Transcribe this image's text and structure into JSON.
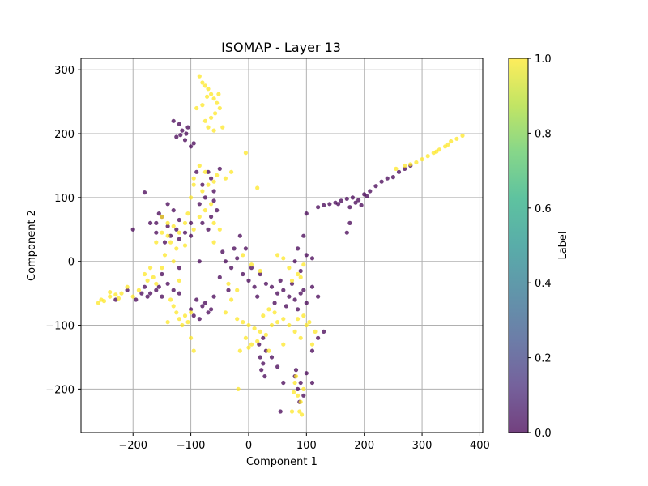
{
  "chart_data": {
    "type": "scatter",
    "title": "ISOMAP - Layer 13",
    "xlabel": "Component 1",
    "ylabel": "Component 2",
    "xlim": [
      -290,
      405
    ],
    "ylim": [
      -268,
      318
    ],
    "xticks": [
      -200,
      -100,
      0,
      100,
      200,
      300,
      400
    ],
    "yticks": [
      -200,
      -100,
      0,
      100,
      200,
      300
    ],
    "xtick_labels": [
      "−200",
      "−100",
      "0",
      "100",
      "200",
      "300",
      "400"
    ],
    "ytick_labels": [
      "−200",
      "−100",
      "0",
      "100",
      "200",
      "300"
    ],
    "grid": true,
    "colormap": "viridis",
    "colors": {
      "label_0": "#440154",
      "label_1": "#fde725"
    },
    "colorbar": {
      "label": "Label",
      "range": [
        0.0,
        1.0
      ],
      "ticks": [
        0.0,
        0.2,
        0.4,
        0.6,
        0.8,
        1.0
      ],
      "tick_labels": [
        "0.0",
        "0.2",
        "0.4",
        "0.6",
        "0.8",
        "1.0"
      ]
    },
    "series": [
      {
        "name": "0",
        "points": [
          [
            -120,
            215
          ],
          [
            -115,
            205
          ],
          [
            -108,
            200
          ],
          [
            -125,
            195
          ],
          [
            -110,
            190
          ],
          [
            -95,
            185
          ],
          [
            -130,
            220
          ],
          [
            -118,
            198
          ],
          [
            -105,
            210
          ],
          [
            -100,
            180
          ],
          [
            -70,
            140
          ],
          [
            -65,
            130
          ],
          [
            -80,
            120
          ],
          [
            -60,
            110
          ],
          [
            -75,
            100
          ],
          [
            -85,
            90
          ],
          [
            -55,
            80
          ],
          [
            -65,
            70
          ],
          [
            -80,
            60
          ],
          [
            -70,
            50
          ],
          [
            -90,
            140
          ],
          [
            -50,
            145
          ],
          [
            -60,
            95
          ],
          [
            -140,
            90
          ],
          [
            -130,
            80
          ],
          [
            -150,
            70
          ],
          [
            -160,
            60
          ],
          [
            -140,
            55
          ],
          [
            -125,
            50
          ],
          [
            -110,
            45
          ],
          [
            -135,
            40
          ],
          [
            -120,
            35
          ],
          [
            -145,
            30
          ],
          [
            -155,
            75
          ],
          [
            -120,
            65
          ],
          [
            -100,
            60
          ],
          [
            -170,
            60
          ],
          [
            -100,
            40
          ],
          [
            -180,
            -40
          ],
          [
            -170,
            -50
          ],
          [
            -160,
            -45
          ],
          [
            -150,
            -55
          ],
          [
            -140,
            -35
          ],
          [
            -130,
            -45
          ],
          [
            -120,
            -50
          ],
          [
            -175,
            -55
          ],
          [
            -155,
            -40
          ],
          [
            -185,
            -50
          ],
          [
            -90,
            -60
          ],
          [
            -80,
            -70
          ],
          [
            -70,
            -80
          ],
          [
            -95,
            -85
          ],
          [
            -85,
            -90
          ],
          [
            -75,
            -65
          ],
          [
            -65,
            -75
          ],
          [
            -100,
            -75
          ],
          [
            -60,
            -55
          ],
          [
            140,
            90
          ],
          [
            150,
            92
          ],
          [
            160,
            95
          ],
          [
            170,
            98
          ],
          [
            180,
            100
          ],
          [
            190,
            96
          ],
          [
            200,
            105
          ],
          [
            210,
            110
          ],
          [
            220,
            118
          ],
          [
            230,
            125
          ],
          [
            240,
            130
          ],
          [
            250,
            132
          ],
          [
            260,
            140
          ],
          [
            270,
            145
          ],
          [
            280,
            150
          ],
          [
            155,
            90
          ],
          [
            175,
            85
          ],
          [
            185,
            92
          ],
          [
            195,
            88
          ],
          [
            205,
            102
          ],
          [
            130,
            88
          ],
          [
            120,
            85
          ],
          [
            20,
            -150
          ],
          [
            25,
            -160
          ],
          [
            22,
            -170
          ],
          [
            30,
            -140
          ],
          [
            18,
            -130
          ],
          [
            28,
            -180
          ],
          [
            25,
            -120
          ],
          [
            80,
            -180
          ],
          [
            85,
            -200
          ],
          [
            90,
            -190
          ],
          [
            95,
            -210
          ],
          [
            82,
            -170
          ],
          [
            100,
            -175
          ],
          [
            110,
            -190
          ],
          [
            88,
            -220
          ],
          [
            40,
            -40
          ],
          [
            50,
            -50
          ],
          [
            60,
            -45
          ],
          [
            70,
            -55
          ],
          [
            80,
            -60
          ],
          [
            90,
            -50
          ],
          [
            100,
            -65
          ],
          [
            110,
            -40
          ],
          [
            55,
            -30
          ],
          [
            75,
            -35
          ],
          [
            95,
            -45
          ],
          [
            65,
            -70
          ],
          [
            85,
            -75
          ],
          [
            45,
            -65
          ],
          [
            120,
            -55
          ],
          [
            0,
            -30
          ],
          [
            10,
            -40
          ],
          [
            20,
            -20
          ],
          [
            -10,
            -20
          ],
          [
            5,
            -10
          ],
          [
            30,
            -35
          ],
          [
            15,
            -55
          ],
          [
            80,
            0
          ],
          [
            100,
            10
          ],
          [
            110,
            5
          ],
          [
            90,
            -15
          ],
          [
            95,
            40
          ],
          [
            100,
            75
          ],
          [
            85,
            20
          ],
          [
            -30,
            -10
          ],
          [
            -40,
            0
          ],
          [
            -20,
            5
          ],
          [
            -50,
            -25
          ],
          [
            -35,
            -45
          ],
          [
            -25,
            20
          ],
          [
            -45,
            15
          ],
          [
            -230,
            -60
          ],
          [
            -210,
            -45
          ],
          [
            -195,
            -60
          ],
          [
            -150,
            -20
          ],
          [
            -120,
            -10
          ],
          [
            55,
            -235
          ],
          [
            60,
            -190
          ],
          [
            120,
            -120
          ],
          [
            110,
            -140
          ],
          [
            130,
            -110
          ],
          [
            40,
            -150
          ],
          [
            50,
            -165
          ],
          [
            175,
            60
          ],
          [
            170,
            45
          ],
          [
            -180,
            108
          ],
          [
            -85,
            0
          ],
          [
            -15,
            40
          ],
          [
            -5,
            20
          ],
          [
            -200,
            50
          ],
          [
            -160,
            45
          ]
        ]
      },
      {
        "name": "1",
        "points": [
          [
            -85,
            290
          ],
          [
            -80,
            280
          ],
          [
            -75,
            275
          ],
          [
            -70,
            270
          ],
          [
            -65,
            262
          ],
          [
            -60,
            255
          ],
          [
            -55,
            248
          ],
          [
            -50,
            240
          ],
          [
            -58,
            232
          ],
          [
            -65,
            225
          ],
          [
            -75,
            220
          ],
          [
            -70,
            210
          ],
          [
            -80,
            245
          ],
          [
            -90,
            240
          ],
          [
            -60,
            205
          ],
          [
            -45,
            210
          ],
          [
            -52,
            262
          ],
          [
            -72,
            258
          ],
          [
            -85,
            150
          ],
          [
            -75,
            140
          ],
          [
            -95,
            130
          ],
          [
            -70,
            120
          ],
          [
            -60,
            125
          ],
          [
            -80,
            110
          ],
          [
            -100,
            100
          ],
          [
            -65,
            90
          ],
          [
            -75,
            80
          ],
          [
            -85,
            70
          ],
          [
            -60,
            60
          ],
          [
            -50,
            50
          ],
          [
            -95,
            120
          ],
          [
            -55,
            135
          ],
          [
            -150,
            70
          ],
          [
            -140,
            60
          ],
          [
            -130,
            55
          ],
          [
            -120,
            45
          ],
          [
            -140,
            40
          ],
          [
            -135,
            30
          ],
          [
            -125,
            20
          ],
          [
            -110,
            25
          ],
          [
            -150,
            45
          ],
          [
            -160,
            30
          ],
          [
            -145,
            10
          ],
          [
            -170,
            -10
          ],
          [
            -180,
            -20
          ],
          [
            -175,
            -30
          ],
          [
            -165,
            -25
          ],
          [
            -160,
            -35
          ],
          [
            -190,
            -45
          ],
          [
            -200,
            -55
          ],
          [
            -220,
            -50
          ],
          [
            -240,
            -55
          ],
          [
            -260,
            -65
          ],
          [
            -255,
            -60
          ],
          [
            -210,
            -40
          ],
          [
            -150,
            -10
          ],
          [
            -130,
            0
          ],
          [
            -130,
            -70
          ],
          [
            -125,
            -80
          ],
          [
            -120,
            -90
          ],
          [
            -115,
            -100
          ],
          [
            -110,
            -85
          ],
          [
            -105,
            -95
          ],
          [
            -100,
            -80
          ],
          [
            -95,
            -140
          ],
          [
            -100,
            -120
          ],
          [
            -135,
            -60
          ],
          [
            -140,
            -95
          ],
          [
            -20,
            -90
          ],
          [
            -10,
            -95
          ],
          [
            0,
            -100
          ],
          [
            10,
            -105
          ],
          [
            20,
            -110
          ],
          [
            30,
            -115
          ],
          [
            40,
            -100
          ],
          [
            50,
            -95
          ],
          [
            60,
            -90
          ],
          [
            -5,
            -120
          ],
          [
            5,
            -130
          ],
          [
            15,
            -125
          ],
          [
            25,
            -85
          ],
          [
            35,
            -75
          ],
          [
            45,
            -80
          ],
          [
            0,
            -135
          ],
          [
            -15,
            -140
          ],
          [
            -18,
            -200
          ],
          [
            70,
            -100
          ],
          [
            80,
            -110
          ],
          [
            90,
            -120
          ],
          [
            100,
            -100
          ],
          [
            105,
            -95
          ],
          [
            95,
            -85
          ],
          [
            85,
            -90
          ],
          [
            110,
            -130
          ],
          [
            115,
            -110
          ],
          [
            80,
            -190
          ],
          [
            85,
            -210
          ],
          [
            90,
            -220
          ],
          [
            88,
            -235
          ],
          [
            78,
            -205
          ],
          [
            95,
            -200
          ],
          [
            82,
            -180
          ],
          [
            75,
            -235
          ],
          [
            92,
            -240
          ],
          [
            50,
            10
          ],
          [
            60,
            5
          ],
          [
            70,
            -10
          ],
          [
            85,
            -20
          ],
          [
            95,
            -5
          ],
          [
            90,
            -25
          ],
          [
            75,
            -30
          ],
          [
            300,
            160
          ],
          [
            320,
            170
          ],
          [
            330,
            175
          ],
          [
            340,
            180
          ],
          [
            350,
            188
          ],
          [
            360,
            192
          ],
          [
            370,
            197
          ],
          [
            290,
            155
          ],
          [
            280,
            152
          ],
          [
            270,
            150
          ],
          [
            310,
            165
          ],
          [
            325,
            172
          ],
          [
            345,
            183
          ],
          [
            255,
            145
          ],
          [
            -10,
            10
          ],
          [
            5,
            -5
          ],
          [
            20,
            -15
          ],
          [
            -20,
            -45
          ],
          [
            -30,
            -60
          ],
          [
            -40,
            -80
          ],
          [
            -35,
            -35
          ],
          [
            -240,
            -48
          ],
          [
            -230,
            -52
          ],
          [
            -225,
            -58
          ],
          [
            -250,
            -62
          ],
          [
            -105,
            75
          ],
          [
            -110,
            60
          ],
          [
            -95,
            50
          ],
          [
            -30,
            140
          ],
          [
            -40,
            130
          ],
          [
            -5,
            170
          ],
          [
            15,
            115
          ],
          [
            35,
            -140
          ],
          [
            60,
            -130
          ],
          [
            -60,
            30
          ],
          [
            -120,
            -30
          ]
        ]
      }
    ]
  }
}
